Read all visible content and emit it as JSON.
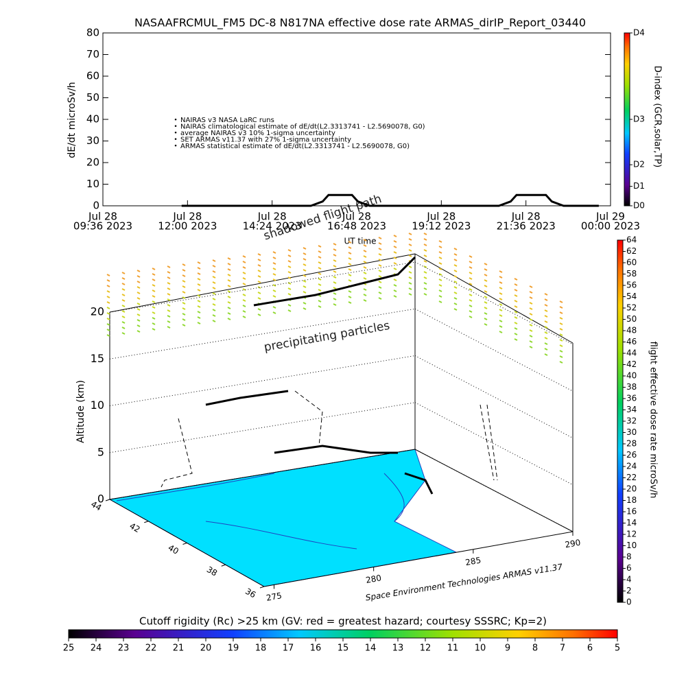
{
  "chart_data": [
    {
      "type": "line",
      "title": "NASAAFRCMUL_FM5 DC-8    N817NA effective dose rate ARMAS_dirIP_Report_03440",
      "y_label": "dE/dt microSv/h",
      "x_label": "UT time",
      "xlim": [
        "2023-07-28T09:36",
        "2023-07-29T00:00"
      ],
      "xticks": [
        {
          "value": "2023-07-28T09:36",
          "label": [
            "Jul 28",
            "09:36 2023"
          ]
        },
        {
          "value": "2023-07-28T12:00",
          "label": [
            "Jul 28",
            "12:00 2023"
          ]
        },
        {
          "value": "2023-07-28T14:24",
          "label": [
            "Jul 28",
            "14:24 2023"
          ]
        },
        {
          "value": "2023-07-28T16:48",
          "label": [
            "Jul 28",
            "16:48 2023"
          ]
        },
        {
          "value": "2023-07-28T19:12",
          "label": [
            "Jul 28",
            "19:12 2023"
          ]
        },
        {
          "value": "2023-07-28T21:36",
          "label": [
            "Jul 28",
            "21:36 2023"
          ]
        },
        {
          "value": "2023-07-29T00:00",
          "label": [
            "Jul 29",
            "00:00 2023"
          ]
        }
      ],
      "ylim": [
        0,
        80
      ],
      "yticks": [
        0,
        10,
        20,
        30,
        40,
        50,
        60,
        70,
        80
      ],
      "y2lim": [
        0,
        80
      ],
      "y2_label": "D-index (GCR,solar,TP)",
      "y2ticks": [
        {
          "value": 0,
          "label": "D0"
        },
        {
          "value": 9,
          "label": "D1"
        },
        {
          "value": 19,
          "label": "D2"
        },
        {
          "value": 40,
          "label": "D3"
        },
        {
          "value": 80,
          "label": "D4"
        }
      ],
      "legend": [
        "NAIRAS v3 NASA LaRC runs",
        "NAIRAS climatological estimate of dE/dt(L2.3313741 - L2.5690078, G0)",
        "average NAIRAS v3 10% 1-sigma uncertainty",
        "SET ARMAS v11.37 with 27% 1-sigma uncertainty",
        "ARMAS statistical estimate of dE/dt(L2.3313741 - L2.5690078, G0)"
      ],
      "series": [
        {
          "name": "SET ARMAS v11.37 with 27% 1-sigma uncertainty",
          "color": "#000000",
          "x": [
            "2023-07-28T11:50",
            "2023-07-28T13:00",
            "2023-07-28T14:30",
            "2023-07-28T15:30",
            "2023-07-28T15:50",
            "2023-07-28T16:00",
            "2023-07-28T16:40",
            "2023-07-28T16:50",
            "2023-07-28T17:10",
            "2023-07-28T19:00",
            "2023-07-28T20:50",
            "2023-07-28T21:10",
            "2023-07-28T21:20",
            "2023-07-28T22:10",
            "2023-07-28T22:20",
            "2023-07-28T22:40",
            "2023-07-28T23:40"
          ],
          "values": [
            0,
            0,
            0,
            0,
            2,
            5,
            5,
            2,
            0,
            0,
            0,
            2,
            5,
            5,
            2,
            0,
            0
          ]
        }
      ]
    },
    {
      "type": "scatter3d",
      "z_label": "Altitude (km)",
      "zlim": [
        0,
        20
      ],
      "zticks": [
        0,
        5,
        10,
        15,
        20
      ],
      "lat_ticks": [
        44,
        42,
        40,
        38,
        36
      ],
      "lon_ticks": [
        275,
        280,
        285,
        290
      ],
      "annotations": [
        "shadowed flight path",
        "precipitating particles"
      ],
      "credit": "Space Environment Technologies ARMAS v11.37",
      "colorbar": {
        "label": "flight effective dose rate microSv/h",
        "lim": [
          0,
          64
        ],
        "ticks": [
          0,
          2,
          4,
          6,
          8,
          10,
          12,
          14,
          16,
          18,
          20,
          22,
          24,
          26,
          28,
          30,
          32,
          34,
          36,
          38,
          40,
          42,
          44,
          46,
          48,
          50,
          52,
          54,
          56,
          58,
          60,
          62,
          64
        ]
      }
    },
    {
      "type": "colorbar",
      "title": "Cutoff rigidity (Rc) >25 km (GV: red = greatest hazard; courtesy SSSRC; Kp=2)",
      "lim": [
        25,
        5
      ],
      "ticks": [
        25,
        24,
        23,
        22,
        21,
        20,
        19,
        18,
        17,
        16,
        15,
        14,
        13,
        12,
        11,
        10,
        9,
        8,
        7,
        6,
        5
      ]
    }
  ]
}
